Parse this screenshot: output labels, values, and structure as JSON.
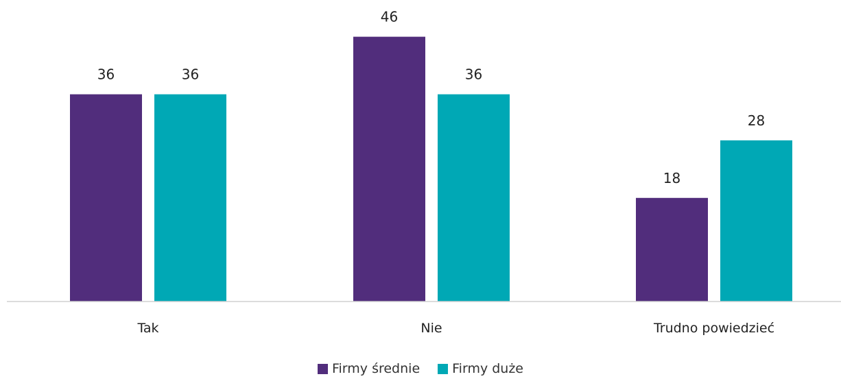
{
  "chart_data": {
    "type": "bar",
    "categories": [
      "Tak",
      "Nie",
      "Trudno powiedzieć"
    ],
    "series": [
      {
        "name": "Firmy średnie",
        "values": [
          36,
          46,
          18
        ],
        "color": "#512d7c"
      },
      {
        "name": "Firmy duże",
        "values": [
          36,
          36,
          28
        ],
        "color": "#00a8b5"
      }
    ],
    "ylim": [
      0,
      50
    ],
    "grid": false,
    "legend": "bottom-center",
    "title": "",
    "xlabel": "",
    "ylabel": ""
  }
}
